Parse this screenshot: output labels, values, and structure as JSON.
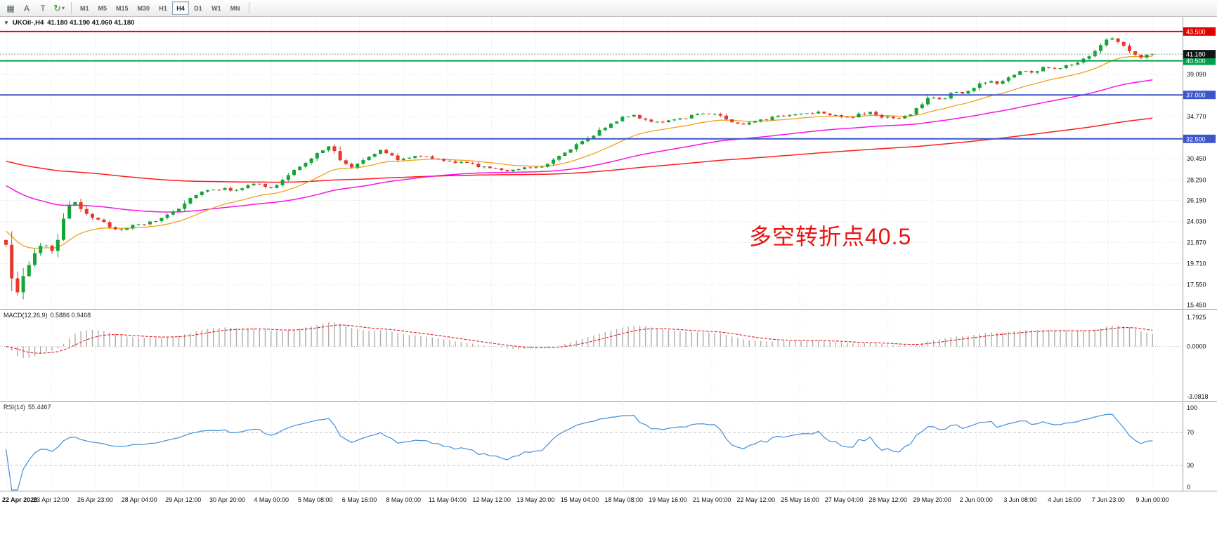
{
  "toolbar": {
    "icons": [
      {
        "name": "chart-window-icon",
        "glyph": "▦"
      },
      {
        "name": "font-tool-icon",
        "glyph": "A"
      },
      {
        "name": "text-tool-icon",
        "glyph": "T"
      },
      {
        "name": "refresh-tool-icon",
        "glyph": "↻"
      },
      {
        "name": "dropdown-caret-icon",
        "glyph": "▾"
      }
    ],
    "timeframes": [
      {
        "label": "M1",
        "active": false
      },
      {
        "label": "M5",
        "active": false
      },
      {
        "label": "M15",
        "active": false
      },
      {
        "label": "M30",
        "active": false
      },
      {
        "label": "H1",
        "active": false
      },
      {
        "label": "H4",
        "active": true
      },
      {
        "label": "D1",
        "active": false
      },
      {
        "label": "W1",
        "active": false
      },
      {
        "label": "MN",
        "active": false
      }
    ]
  },
  "chart": {
    "collapse_arrow": "▼",
    "symbol": "UKOil-,H4",
    "ohlc": "41.180 41.190 41.060 41.180",
    "annotation": {
      "text": "多空转折点40.5",
      "color": "#e81414"
    },
    "price_ticks": [
      "39.090",
      "34.770",
      "30.450",
      "28.290",
      "26.190",
      "24.030",
      "21.870",
      "19.710",
      "17.550",
      "15.450"
    ],
    "levels": [
      {
        "label": "43.500",
        "price": 43.5,
        "line": "#e00000",
        "width": 2
      },
      {
        "label": "40.500",
        "price": 40.5,
        "line": "#00a14b",
        "width": 2
      },
      {
        "label": "37.000",
        "price": 37.0,
        "line": "#3d55cc",
        "width": 2
      },
      {
        "label": "32.500",
        "price": 32.5,
        "line": "#3d55cc",
        "width": 2
      }
    ],
    "current_price": {
      "label": "41.180",
      "price": 41.18,
      "badge": "#141414"
    }
  },
  "macd": {
    "label": "MACD(12,26,9)",
    "values": "0.5886 0.9468",
    "scale": [
      {
        "label": "1.7925",
        "value": 1.7925
      },
      {
        "label": "0.0000",
        "value": 0
      },
      {
        "label": "-3.0818",
        "value": -3.0818
      }
    ]
  },
  "rsi": {
    "label": "RSI(14)",
    "value": "55.4467",
    "scale": [
      {
        "label": "100",
        "value": 100
      },
      {
        "label": "70",
        "value": 70
      },
      {
        "label": "30",
        "value": 30
      },
      {
        "label": "0",
        "value": 0
      }
    ],
    "levels": [
      70,
      30
    ]
  },
  "time_axis": {
    "labels": [
      "22 Apr 2020",
      "23 Apr 12:00",
      "26 Apr 23:00",
      "28 Apr 04:00",
      "29 Apr 12:00",
      "30 Apr 20:00",
      "4 May 00:00",
      "5 May 08:00",
      "6 May 16:00",
      "8 May 00:00",
      "11 May 04:00",
      "12 May 12:00",
      "13 May 20:00",
      "15 May 04:00",
      "18 May 08:00",
      "19 May 16:00",
      "21 May 00:00",
      "22 May 12:00",
      "25 May 16:00",
      "27 May 04:00",
      "28 May 12:00",
      "29 May 20:00",
      "2 Jun 00:00",
      "3 Jun 08:00",
      "4 Jun 16:00",
      "7 Jun 23:00",
      "9 Jun 00:00"
    ]
  },
  "chart_data": {
    "type": "candlestick",
    "symbol": "UKOil-",
    "timeframe": "H4",
    "current_ohlc": {
      "open": 41.18,
      "high": 41.19,
      "low": 41.06,
      "close": 41.18
    },
    "ylim": [
      15.0,
      45.0
    ],
    "candle_count": 200,
    "price_anchors": [
      [
        0,
        21.5
      ],
      [
        0.004,
        19.0
      ],
      [
        0.008,
        16.3
      ],
      [
        0.013,
        17.8
      ],
      [
        0.02,
        19.5
      ],
      [
        0.027,
        21.3
      ],
      [
        0.033,
        21.8
      ],
      [
        0.041,
        21.0
      ],
      [
        0.047,
        22.6
      ],
      [
        0.053,
        25.5
      ],
      [
        0.06,
        25.9
      ],
      [
        0.066,
        25.3
      ],
      [
        0.079,
        24.2
      ],
      [
        0.096,
        23.2
      ],
      [
        0.113,
        23.6
      ],
      [
        0.129,
        24.0
      ],
      [
        0.149,
        25.3
      ],
      [
        0.166,
        26.9
      ],
      [
        0.179,
        27.4
      ],
      [
        0.199,
        27.3
      ],
      [
        0.219,
        27.9
      ],
      [
        0.232,
        27.4
      ],
      [
        0.242,
        28.3
      ],
      [
        0.258,
        29.9
      ],
      [
        0.272,
        31.0
      ],
      [
        0.283,
        31.8
      ],
      [
        0.291,
        30.4
      ],
      [
        0.301,
        29.6
      ],
      [
        0.315,
        30.7
      ],
      [
        0.329,
        31.4
      ],
      [
        0.341,
        30.3
      ],
      [
        0.358,
        30.9
      ],
      [
        0.374,
        30.4
      ],
      [
        0.391,
        30.1
      ],
      [
        0.407,
        29.9
      ],
      [
        0.424,
        29.4
      ],
      [
        0.437,
        29.3
      ],
      [
        0.454,
        29.6
      ],
      [
        0.467,
        29.7
      ],
      [
        0.48,
        30.6
      ],
      [
        0.493,
        31.6
      ],
      [
        0.507,
        32.4
      ],
      [
        0.52,
        33.6
      ],
      [
        0.533,
        34.4
      ],
      [
        0.546,
        35.0
      ],
      [
        0.56,
        34.4
      ],
      [
        0.573,
        34.1
      ],
      [
        0.589,
        34.6
      ],
      [
        0.604,
        35.1
      ],
      [
        0.617,
        35.2
      ],
      [
        0.63,
        34.4
      ],
      [
        0.64,
        33.9
      ],
      [
        0.652,
        34.4
      ],
      [
        0.666,
        34.6
      ],
      [
        0.679,
        34.9
      ],
      [
        0.694,
        35.1
      ],
      [
        0.709,
        35.3
      ],
      [
        0.722,
        35.0
      ],
      [
        0.736,
        34.7
      ],
      [
        0.752,
        35.2
      ],
      [
        0.767,
        34.7
      ],
      [
        0.781,
        34.5
      ],
      [
        0.795,
        35.6
      ],
      [
        0.805,
        36.8
      ],
      [
        0.816,
        36.5
      ],
      [
        0.826,
        37.3
      ],
      [
        0.836,
        37.1
      ],
      [
        0.846,
        37.9
      ],
      [
        0.856,
        38.4
      ],
      [
        0.866,
        38.2
      ],
      [
        0.876,
        38.9
      ],
      [
        0.886,
        39.6
      ],
      [
        0.895,
        39.2
      ],
      [
        0.905,
        39.9
      ],
      [
        0.915,
        39.6
      ],
      [
        0.925,
        40.1
      ],
      [
        0.935,
        40.4
      ],
      [
        0.945,
        41.1
      ],
      [
        0.955,
        42.2
      ],
      [
        0.964,
        42.9
      ],
      [
        0.972,
        42.4
      ],
      [
        0.98,
        41.4
      ],
      [
        0.988,
        40.9
      ],
      [
        0.995,
        41.0
      ],
      [
        1,
        41.18
      ]
    ],
    "moving_averages": {
      "fast": {
        "period": 18,
        "seed": 23.2
      },
      "mid": {
        "period": 60,
        "seed": 27.9
      },
      "slow": {
        "period": 180,
        "seed": 30.3
      }
    },
    "macd_params": "12,26,9",
    "rsi_params": "14",
    "colors": {
      "up": "#13a538",
      "down": "#e6392b",
      "ma_fast": "#f0a01e",
      "ma_mid": "#f513e8",
      "ma_slow": "#fb1d1d",
      "macd_hist": "#adadad",
      "macd_signal": "#e02020",
      "rsi": "#3f8fdc",
      "grid": "#e4e4e4",
      "level_dash": "#c4c4c4"
    }
  }
}
